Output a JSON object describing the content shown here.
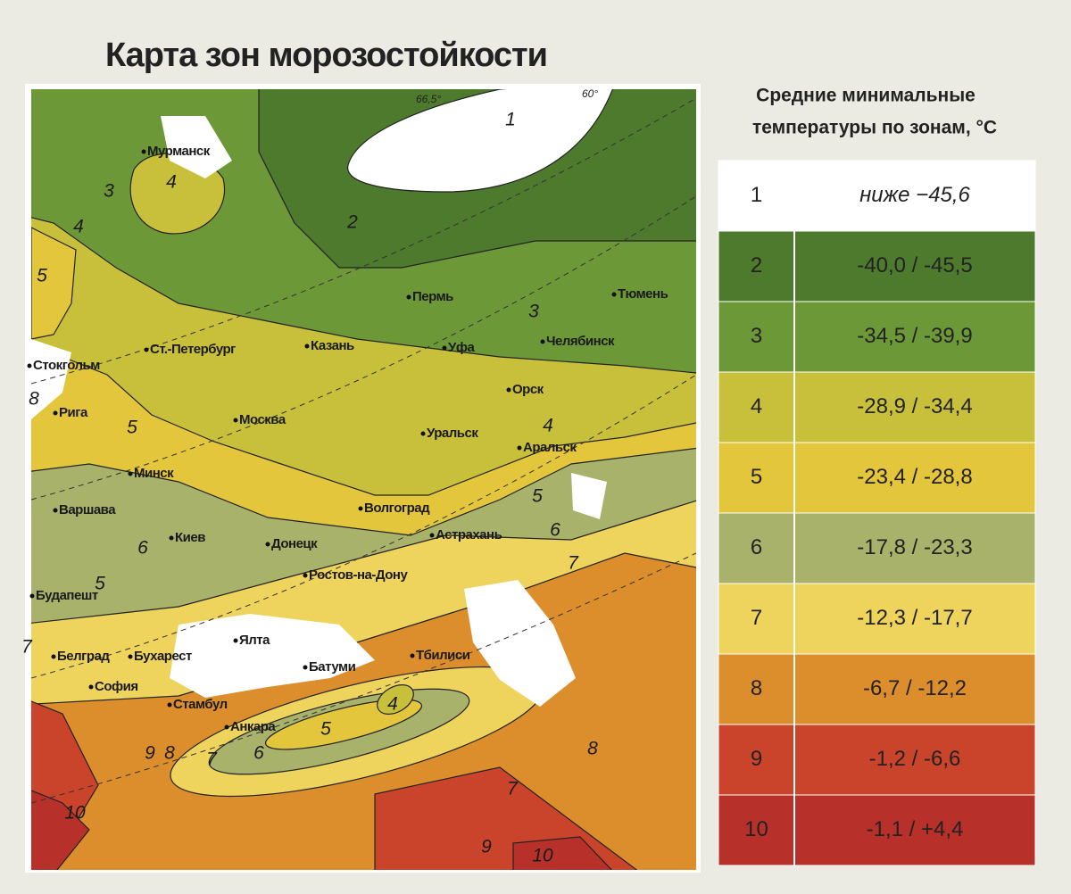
{
  "title": "Карта зон морозостойкости",
  "legend": {
    "heading": [
      "Средние минимальные",
      "температуры по зонам, °C"
    ],
    "rows": [
      {
        "zone": "1",
        "range": "ниже −45,6",
        "color": "#ffffff"
      },
      {
        "zone": "2",
        "range": "-40,0 / -45,5",
        "color": "#4d7a2d"
      },
      {
        "zone": "3",
        "range": "-34,5 / -39,9",
        "color": "#6d9838"
      },
      {
        "zone": "4",
        "range": "-28,9 / -34,4",
        "color": "#c8c03a"
      },
      {
        "zone": "5",
        "range": "-23,4 / -28,8",
        "color": "#e3c63c"
      },
      {
        "zone": "6",
        "range": "-17,8 / -23,3",
        "color": "#a8b26a"
      },
      {
        "zone": "7",
        "range": "-12,3 / -17,7",
        "color": "#eed35c"
      },
      {
        "zone": "8",
        "range": "-6,7 / -12,2",
        "color": "#dc8e2c"
      },
      {
        "zone": "9",
        "range": "-1,2 / -6,6",
        "color": "#c9442a"
      },
      {
        "zone": "10",
        "range": "-1,1 / +4,4",
        "color": "#b7302a"
      }
    ]
  },
  "map": {
    "parallels": [
      "66,5°",
      "60°"
    ],
    "cities": [
      "Мурманск",
      "Пермь",
      "Тюмень",
      "Ст.-Петербург",
      "Казань",
      "Уфа",
      "Челябинск",
      "Стокгольм",
      "Рига",
      "Москва",
      "Орск",
      "Уральск",
      "Аральск",
      "Минск",
      "Волгоград",
      "Варшава",
      "Киев",
      "Донецк",
      "Астрахань",
      "Ростов-на-Дону",
      "Будапешт",
      "Ялта",
      "Белград",
      "Бухарест",
      "Батуми",
      "Тбилиси",
      "София",
      "Стамбул",
      "Анкара"
    ],
    "zone_labels": [
      "1",
      "2",
      "3",
      "4",
      "4",
      "5",
      "3",
      "8",
      "5",
      "4",
      "5",
      "6",
      "6",
      "7",
      "5",
      "7",
      "9",
      "8",
      "7",
      "6",
      "5",
      "4",
      "8",
      "7",
      "10",
      "9",
      "10"
    ]
  }
}
